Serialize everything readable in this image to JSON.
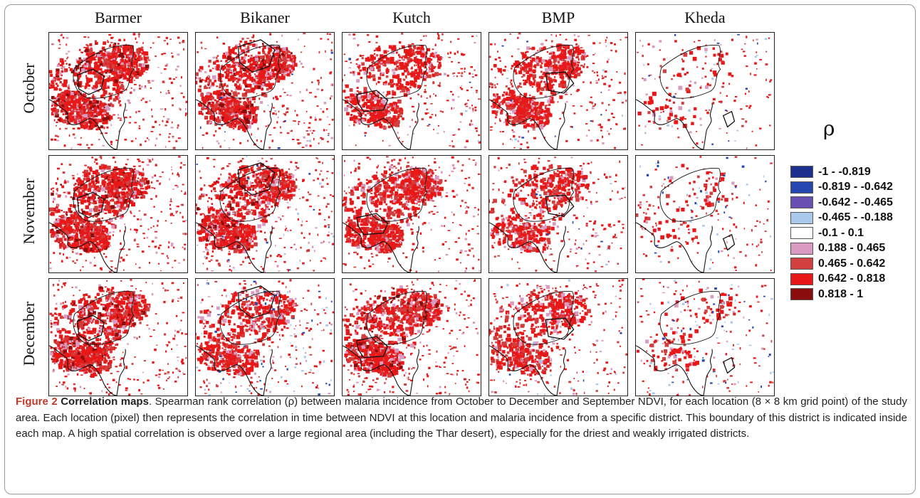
{
  "figure": {
    "columns": [
      "Barmer",
      "Bikaner",
      "Kutch",
      "BMP",
      "Kheda"
    ],
    "rows": [
      "October",
      "November",
      "December"
    ],
    "legend": {
      "title": "ρ",
      "items": [
        {
          "label": "-1 - -0.819",
          "color": "#1d2f8f"
        },
        {
          "label": "-0.819 - -0.642",
          "color": "#2747b0"
        },
        {
          "label": "-0.642 - -0.465",
          "color": "#6a4fb3"
        },
        {
          "label": "-0.465 - -0.188",
          "color": "#a9c8ea"
        },
        {
          "label": "-0.1 - 0.1",
          "color": "#ffffff"
        },
        {
          "label": "0.188 - 0.465",
          "color": "#d99bc2"
        },
        {
          "label": "0.465 - 0.642",
          "color": "#d23f3f"
        },
        {
          "label": "0.642 - 0.818",
          "color": "#e81818"
        },
        {
          "label": "0.818 - 1",
          "color": "#8a0c0c"
        }
      ]
    }
  },
  "caption": {
    "number": "Figure 2",
    "title": "Correlation maps",
    "text": ". Spearman rank correlation (ρ) between malaria incidence from October to December and September NDVI, for each location (8 × 8 km grid point) of the study area. Each location (pixel) then represents the correlation in time between NDVI at this location and malaria incidence from a specific district. This boundary of this district is indicated inside each map. A high spatial correlation is observed over a large regional area (including the Thar desert), especially for the driest and weakly irrigated districts."
  }
}
